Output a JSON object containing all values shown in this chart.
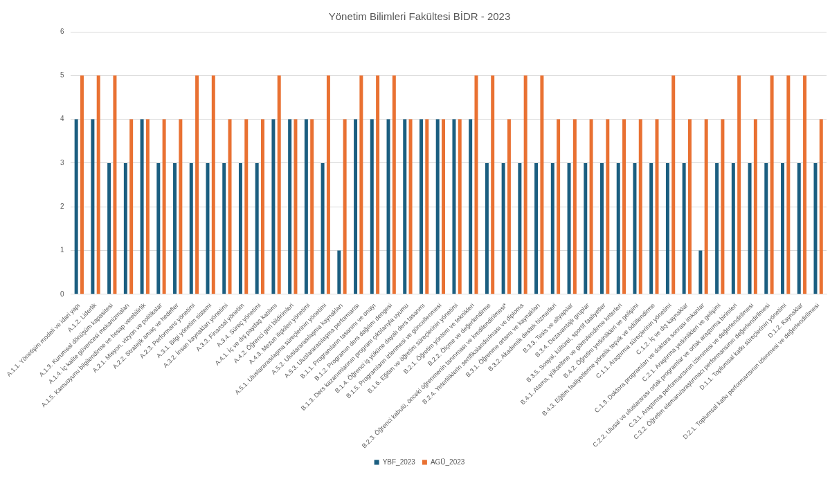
{
  "chart_data": {
    "type": "bar",
    "title": "Yönetim Bilimleri Fakültesi BİDR - 2023",
    "categories": [
      "A.1.1. Yönetişim modeli ve idari yapı",
      "A.1.2. Liderlik",
      "A.1.3. Kurumsal dönüşüm kapasitesi",
      "A.1.4. İç kalite güvencesi mekanizmaları",
      "A.1.5. Kamuoyunu bilgilendirme ve hesap verebilirlik",
      "A.2.1. Misyon, vizyon ve politikalar",
      "A.2.2. Stratejik amaç ve hedefler",
      "A.2.3. Performans yönetimi",
      "A.3.1. Bilgi yönetim sistemi",
      "A.3.2. İnsan kaynakları yönetimi",
      "A.3.3. Finansal yönetim",
      "A.3.4. Süreç yönetimi",
      "A.4.1. İç ve dış paydaş katılımı",
      "A.4.2. Öğrenci geri bildirimleri",
      "A.4.3. Mezun ilişkileri yönetimi",
      "A.5.1. Uluslararasılaşma süreçlerinin yönetimi",
      "A.5.2. Uluslararasılaşma kaynakları",
      "A.5.3. Uluslararasılaşma performansı",
      "B.1.1. Programların tasarımı ve onayı",
      "B.1.2. Programın ders dağılım dengesi",
      "B.1.3. Ders kazanımlarının program çıktılarıyla uyumu",
      "B.1.4. Öğrenci iş yüküne dayalı ders tasarımı",
      "B.1.5. Programların izlenmesi ve güncellenmesi",
      "B.1.6. Eğitim ve öğretim süreçlerinin yönetimi",
      "B.2.1. Öğretim yöntem ve teknikleri",
      "B.2.2. Ölçme ve değerlendirme",
      "B.2.3. Öğrenci kabulü, önceki öğrenmenin tanınması ve kredilendirilmesi*",
      "B.2.4. Yeterliliklerin sertifikalandırılması ve diploma",
      "B.3.1. Öğrenme ortamı ve kaynakları",
      "B.3.2. Akademik destek hizmetleri",
      "B.3.3. Tesis ve altyapılar",
      "B.3.4. Dezavantajlı gruplar",
      "B.3.5. Sosyal, kültürel, sportif faaliyetler",
      "B.4.1. Atama, yükseltme ve görevlendirme kriterleri",
      "B.4.2. Öğretim yetkinlikleri ve gelişimi",
      "B.4.3. Eğitim faaliyetlerine yönelik teşvik ve ödüllendirme",
      "C.1.1. Araştırma süreçlerinin yönetimi",
      "C.1.2. İç ve dış kaynaklar",
      "C.1.3. Doktora programları ve doktora sonrası imkanlar",
      "C.2.1. Araştırma yetkinlikleri ve gelişimi",
      "C.2.2. Ulusal ve uluslararası ortak programlar ve ortak araştırma birimleri",
      "C.3.1. Araştırma performansının izlenmesi ve değerlendirilmesi",
      "C.3.2. Öğretim elemanı/araştırmacı performansının değerlendirilmesi",
      "D.1.1. Toplumsal katkı süreçlerinin yönetimi",
      "D.1.2. Kaynaklar",
      "D.2.1. Toplumsal katkı performansının izlenmesi ve değerlendirilmesi"
    ],
    "series": [
      {
        "name": "YBF_2023",
        "color": "#1b5e80",
        "values": [
          4,
          4,
          3,
          3,
          4,
          3,
          3,
          3,
          3,
          3,
          3,
          3,
          4,
          4,
          4,
          3,
          1,
          4,
          4,
          4,
          4,
          4,
          4,
          4,
          4,
          3,
          3,
          3,
          3,
          3,
          3,
          3,
          3,
          3,
          3,
          3,
          3,
          3,
          1,
          3,
          3,
          3,
          3,
          3,
          3,
          3
        ]
      },
      {
        "name": "AGÜ_2023",
        "color": "#e97132",
        "values": [
          5,
          5,
          5,
          4,
          4,
          4,
          4,
          5,
          5,
          4,
          4,
          4,
          5,
          4,
          4,
          5,
          4,
          5,
          5,
          5,
          4,
          4,
          4,
          4,
          5,
          5,
          4,
          5,
          5,
          4,
          4,
          4,
          4,
          4,
          4,
          4,
          5,
          4,
          4,
          4,
          5,
          4,
          5,
          5,
          5,
          4
        ]
      }
    ],
    "ylim": [
      0,
      6
    ],
    "yticks": [
      0,
      1,
      2,
      3,
      4,
      5,
      6
    ],
    "grid": "y",
    "legend": "bottom"
  }
}
